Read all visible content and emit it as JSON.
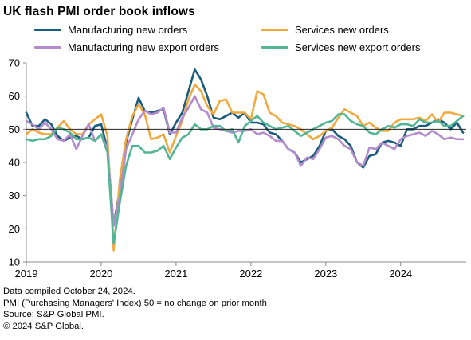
{
  "title": "UK flash PMI order book inflows",
  "colors": {
    "manufacturing_new_orders": "#1a5c7c",
    "services_new_orders": "#f0a93f",
    "manufacturing_new_export_orders": "#b48ccd",
    "services_new_export_orders": "#52b595",
    "reference_line": "#222222",
    "axis": "#888888"
  },
  "chart_data": {
    "type": "line",
    "title": "UK flash PMI order book inflows",
    "xlabel": "",
    "ylabel": "",
    "ylim": [
      10,
      70
    ],
    "yticks": [
      10,
      20,
      30,
      40,
      50,
      60,
      70
    ],
    "xlim": [
      2019.0,
      2024.875
    ],
    "xticks": [
      2019,
      2020,
      2021,
      2022,
      2023,
      2024
    ],
    "reference_line": 50,
    "grid": false,
    "legend": "top",
    "x": [
      2019.0,
      2019.083,
      2019.167,
      2019.25,
      2019.333,
      2019.417,
      2019.5,
      2019.583,
      2019.667,
      2019.75,
      2019.833,
      2019.917,
      2020.0,
      2020.083,
      2020.167,
      2020.25,
      2020.333,
      2020.417,
      2020.5,
      2020.583,
      2020.667,
      2020.75,
      2020.833,
      2020.917,
      2021.0,
      2021.083,
      2021.167,
      2021.25,
      2021.333,
      2021.417,
      2021.5,
      2021.583,
      2021.667,
      2021.75,
      2021.833,
      2021.917,
      2022.0,
      2022.083,
      2022.167,
      2022.25,
      2022.333,
      2022.417,
      2022.5,
      2022.583,
      2022.667,
      2022.75,
      2022.833,
      2022.917,
      2023.0,
      2023.083,
      2023.167,
      2023.25,
      2023.333,
      2023.417,
      2023.5,
      2023.583,
      2023.667,
      2023.75,
      2023.833,
      2023.917,
      2024.0,
      2024.083,
      2024.167,
      2024.25,
      2024.333,
      2024.417,
      2024.5,
      2024.583,
      2024.667,
      2024.75,
      2024.833
    ],
    "series": [
      {
        "name": "Manufacturing new orders",
        "color": "#1a5c7c",
        "values": [
          55,
          51,
          51,
          53,
          51.5,
          48,
          46.5,
          47.5,
          48,
          47,
          47.5,
          51,
          51.5,
          44,
          21,
          32,
          46,
          53,
          59.5,
          55.5,
          55,
          55.5,
          56,
          48.5,
          52,
          55,
          61.5,
          68,
          65,
          60,
          53.5,
          53,
          54,
          55,
          53.5,
          55,
          52,
          52,
          51.5,
          49,
          48.5,
          46.5,
          44,
          43,
          40,
          41,
          42,
          45,
          49.5,
          50,
          48,
          47,
          45,
          40,
          38.5,
          42,
          42.5,
          46,
          46.5,
          46,
          45,
          50,
          50,
          51,
          51,
          52,
          53,
          52,
          50,
          52,
          49
        ]
      },
      {
        "name": "Services new orders",
        "color": "#f0a93f",
        "values": [
          48.5,
          50,
          49,
          48.5,
          48.5,
          50.5,
          52.5,
          50,
          48.5,
          48.5,
          51.5,
          53,
          54.5,
          48,
          13.5,
          35,
          47,
          54,
          57.5,
          54.5,
          47,
          47.5,
          48.5,
          43,
          48,
          52.5,
          59,
          63.5,
          61.5,
          57,
          54.5,
          58.5,
          59,
          55,
          55,
          55,
          53,
          61.5,
          60.5,
          55,
          54,
          52,
          51.5,
          51,
          50,
          48.5,
          47,
          48,
          49.5,
          50.5,
          53.5,
          56,
          55,
          54,
          51,
          52,
          50.5,
          49.5,
          49.5,
          52,
          53,
          53,
          53,
          53.5,
          52.5,
          54.5,
          52,
          55,
          55,
          54.5,
          54
        ]
      },
      {
        "name": "Manufacturing new export orders",
        "color": "#b48ccd",
        "values": [
          52.5,
          51.5,
          50,
          52,
          50,
          47,
          46.5,
          48.5,
          44,
          48,
          51.5,
          46.5,
          48.5,
          44,
          21,
          30,
          44,
          48.5,
          53,
          55.5,
          54.5,
          55,
          56.5,
          49,
          49,
          53.5,
          56.5,
          60,
          56,
          55,
          50.5,
          50,
          49.5,
          49,
          49.5,
          49.5,
          50,
          48.5,
          49,
          48,
          46.5,
          46.5,
          44,
          43,
          39,
          41.5,
          41,
          44,
          47.5,
          48,
          47,
          45,
          44,
          40,
          39,
          44.5,
          44,
          46,
          45,
          44,
          47,
          48,
          48.5,
          49,
          48,
          49.5,
          48.5,
          47,
          47.5,
          47,
          47
        ]
      },
      {
        "name": "Services new export orders",
        "color": "#52b595",
        "values": [
          47,
          46.5,
          47,
          47,
          48,
          50.5,
          50,
          49,
          47,
          47,
          47.5,
          46.5,
          48.5,
          43,
          15.5,
          28,
          39,
          45,
          45,
          43,
          43,
          43.5,
          45,
          41,
          44.5,
          47.5,
          48.5,
          51.5,
          50,
          50,
          51,
          51,
          49.5,
          50,
          46,
          51,
          52.5,
          54,
          52,
          51,
          50,
          50.5,
          51,
          49.5,
          48,
          49,
          50,
          51,
          52,
          52.5,
          54.5,
          54.5,
          52.5,
          51.5,
          51,
          49,
          48.5,
          50,
          51,
          50.5,
          51.5,
          51.5,
          51,
          53,
          52,
          52,
          52.5,
          51,
          51,
          52.5,
          54
        ]
      }
    ]
  },
  "notes": [
    "Data compiled October 24, 2024.",
    "PMI (Purchasing Managers' Index) 50 = no change on prior month",
    "Source: S&P Global PMI.",
    "© 2024 S&P Global."
  ]
}
